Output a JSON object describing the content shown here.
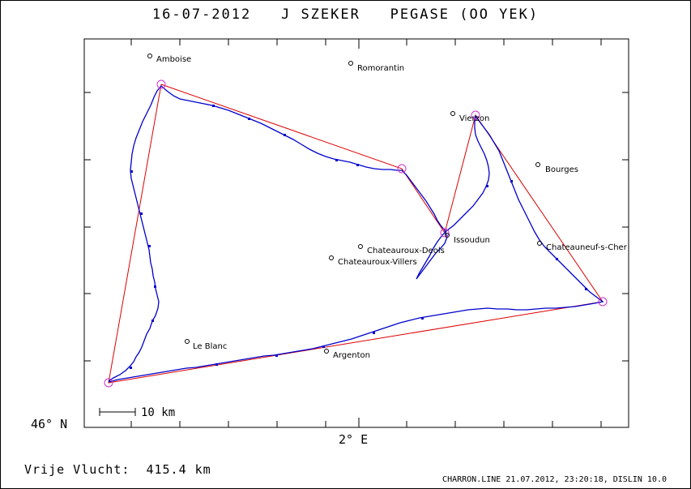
{
  "header": {
    "date": "16-07-2012",
    "pilot": "J SZEKER",
    "glider": "PEGASE (OO YEK)"
  },
  "axes": {
    "lat_label": "46° N",
    "lon_label": "2° E"
  },
  "scale": {
    "label": "10 km"
  },
  "cities": [
    {
      "name": "Amboise"
    },
    {
      "name": "Romorantin"
    },
    {
      "name": "Vierzon"
    },
    {
      "name": "Bourges"
    },
    {
      "name": "Issoudun"
    },
    {
      "name": "Chateauroux-Deols"
    },
    {
      "name": "Chateauroux-Villers"
    },
    {
      "name": "Chateauneuf-s-Cher"
    },
    {
      "name": "Le Blanc"
    },
    {
      "name": "Argenton"
    }
  ],
  "colors": {
    "track": "#0000cc",
    "task": "#dd0000",
    "turnpoint": "#cc33cc"
  },
  "footer": {
    "distance": "Vrije Vlucht:  415.4 km",
    "credit": "CHARRON.LINE 21.07.2012, 23:20:18, DISLIN 10.0"
  }
}
